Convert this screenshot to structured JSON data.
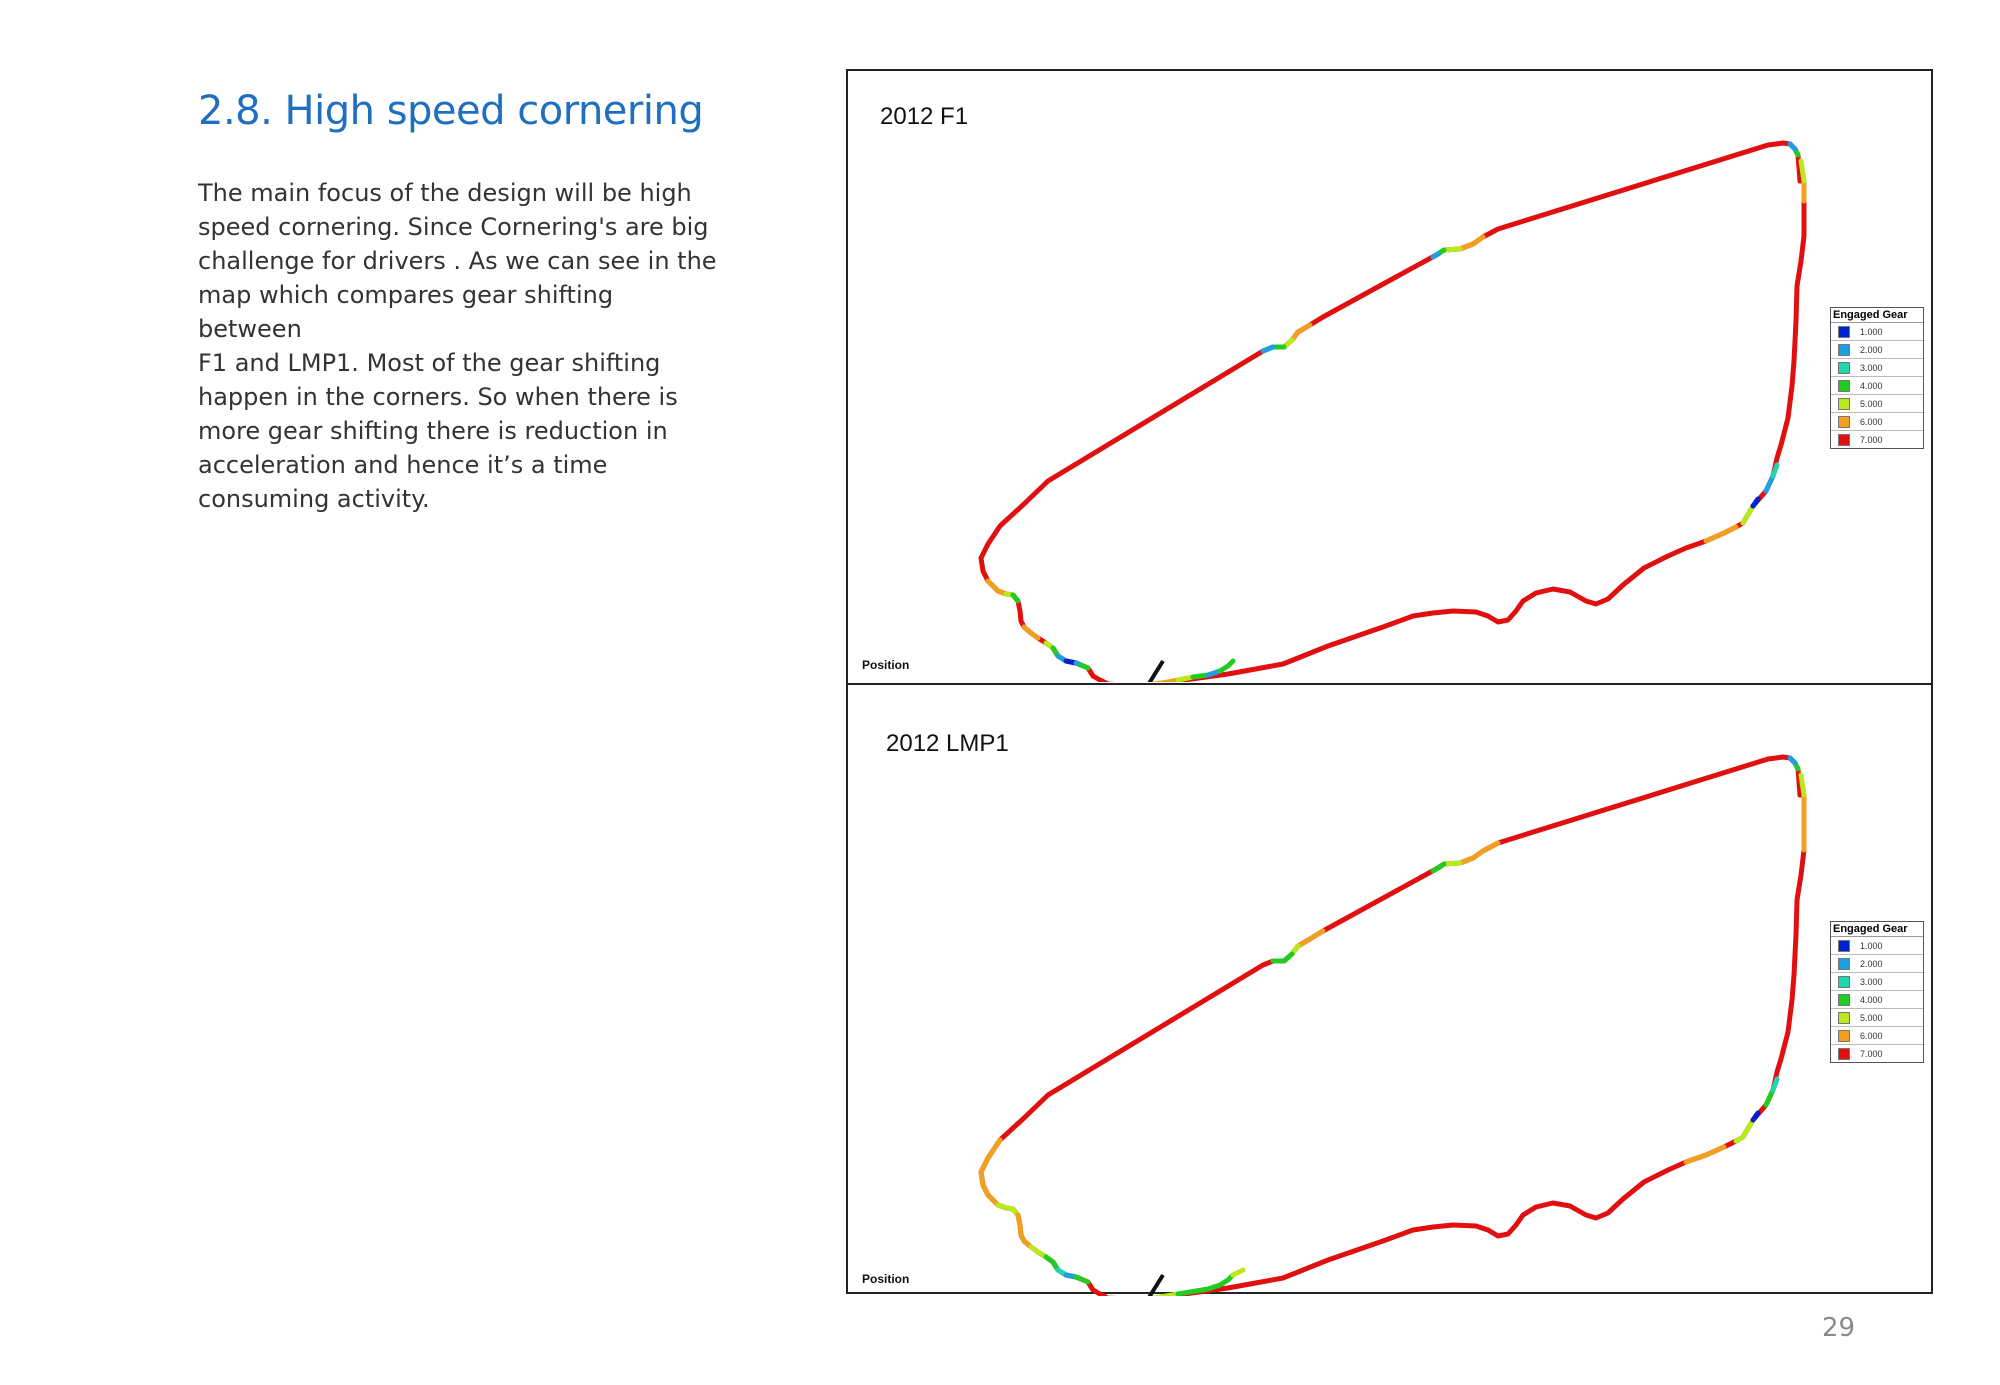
{
  "heading": "2.8. High speed cornering",
  "paragraph_lines": [
    "The main focus of the design will be high",
    "speed cornering. Since Cornering's are big",
    "challenge for drivers . As we can see in the",
    "map which compares gear shifting between",
    "F1 and LMP1. Most of the gear shifting",
    "happen in the corners. So when there is",
    "more gear shifting there is reduction in",
    "acceleration and hence it’s a time",
    "consuming activity."
  ],
  "figure": {
    "panels": [
      {
        "title": "2012 F1",
        "position_label": "Position"
      },
      {
        "title": "2012 LMP1",
        "position_label": "Position"
      }
    ],
    "legend": {
      "title": "Engaged Gear",
      "items": [
        {
          "label": "1.000",
          "color": "#0022cc"
        },
        {
          "label": "2.000",
          "color": "#1ea0e0"
        },
        {
          "label": "3.000",
          "color": "#22d4b0"
        },
        {
          "label": "4.000",
          "color": "#22cc22"
        },
        {
          "label": "5.000",
          "color": "#b8e81e"
        },
        {
          "label": "6.000",
          "color": "#f0a020"
        },
        {
          "label": "7.000",
          "color": "#e01010"
        }
      ]
    }
  },
  "page_number": "29"
}
